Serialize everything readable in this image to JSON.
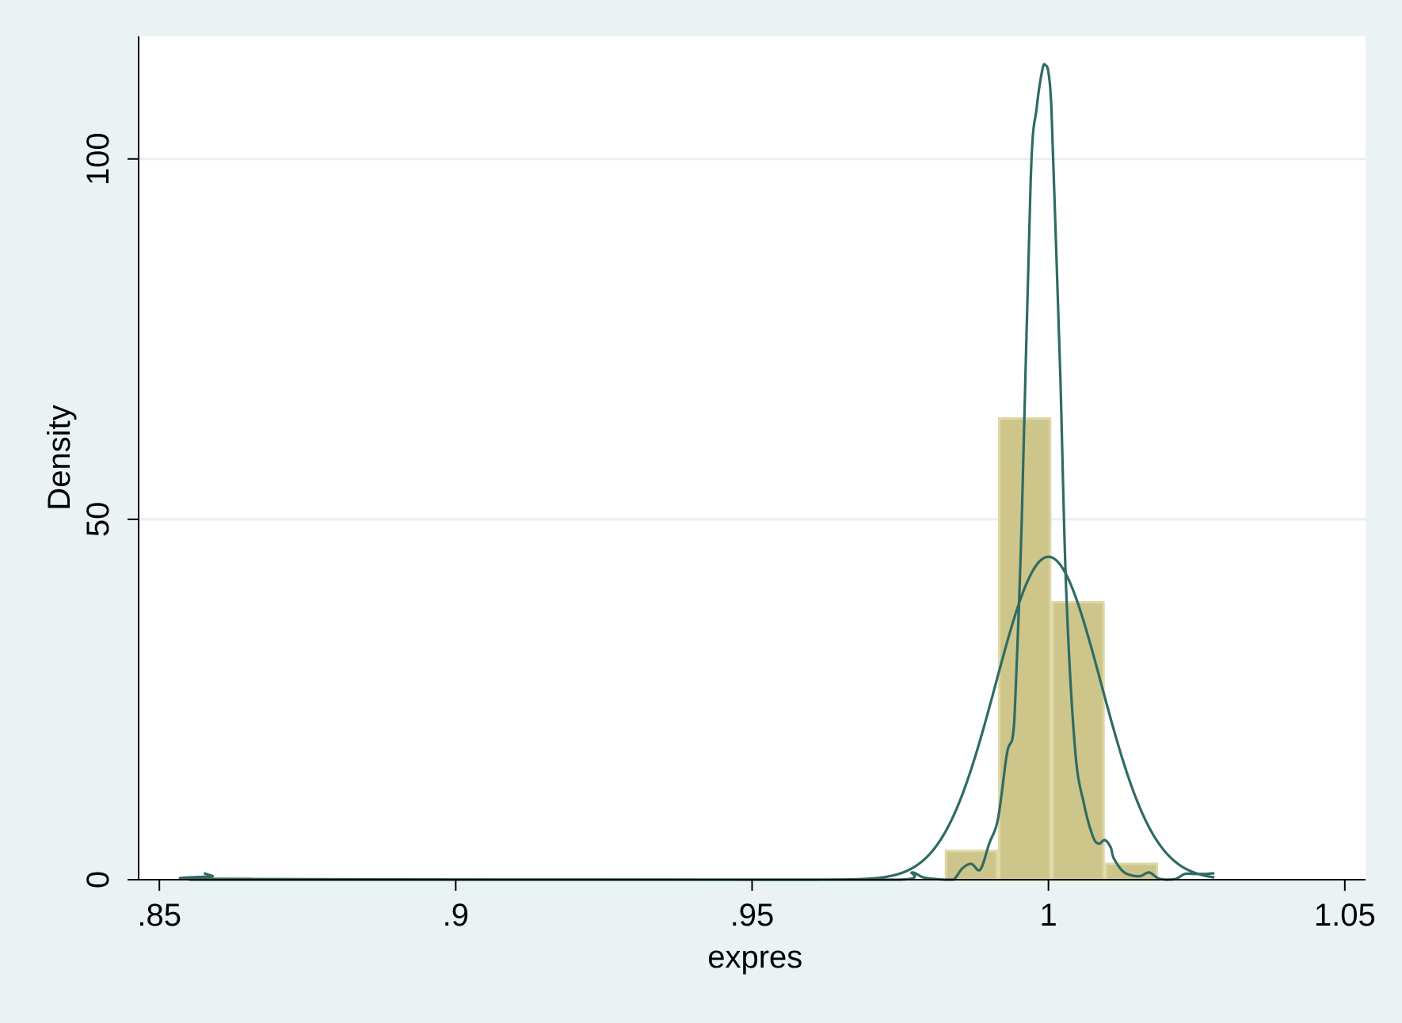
{
  "chart_data": {
    "type": "bar",
    "title": "",
    "xlabel": "expres",
    "ylabel": "Density",
    "xlim": [
      0.8465,
      1.0535
    ],
    "ylim": [
      0,
      117
    ],
    "x_ticks": [
      {
        "value": 0.85,
        "label": ".85"
      },
      {
        "value": 0.9,
        "label": ".9"
      },
      {
        "value": 0.95,
        "label": ".95"
      },
      {
        "value": 1.0,
        "label": "1"
      },
      {
        "value": 1.05,
        "label": "1.05"
      }
    ],
    "y_ticks": [
      {
        "value": 0,
        "label": "0"
      },
      {
        "value": 50,
        "label": "50"
      },
      {
        "value": 100,
        "label": "100"
      }
    ],
    "grid": "horizontal",
    "histogram": {
      "bin_width": 0.009,
      "bins": [
        {
          "x0": 0.8565,
          "x1": 0.8655,
          "density": 0.2
        },
        {
          "x0": 0.9825,
          "x1": 0.9915,
          "density": 4.0
        },
        {
          "x0": 0.9915,
          "x1": 1.0005,
          "density": 64.0
        },
        {
          "x0": 1.0005,
          "x1": 1.0095,
          "density": 38.5
        },
        {
          "x0": 1.0095,
          "x1": 1.0185,
          "density": 2.2
        }
      ]
    },
    "kernel_density": {
      "x": [
        0.8575,
        0.859,
        0.8605,
        0.95,
        0.975,
        0.977,
        0.979,
        0.9825,
        0.984,
        0.9855,
        0.987,
        0.9885,
        0.99,
        0.9915,
        0.993,
        0.994,
        0.9945,
        0.9955,
        0.997,
        0.998,
        0.999,
        0.9995,
        1.0,
        1.0005,
        1.0012,
        1.002,
        1.003,
        1.0045,
        1.006,
        1.0075,
        1.0085,
        1.0095,
        1.0105,
        1.011,
        1.0125,
        1.014,
        1.0155,
        1.017,
        1.0185,
        1.02,
        1.0215,
        1.023,
        1.0245,
        1.0265,
        1.028
      ],
      "y": [
        0.9,
        0.5,
        0.1,
        0.0,
        0.0,
        1.0,
        0.3,
        0.0,
        0.0,
        1.6,
        2.2,
        1.4,
        5.0,
        8.5,
        17.5,
        20.0,
        27.0,
        50.0,
        97.0,
        107.0,
        112.5,
        113.0,
        112.0,
        107.0,
        90.0,
        70.0,
        40.0,
        18.0,
        10.5,
        6.0,
        5.0,
        5.5,
        4.5,
        3.0,
        1.2,
        0.6,
        0.5,
        1.0,
        0.2,
        0.0,
        0.1,
        0.8,
        0.8,
        0.8,
        0.9
      ]
    },
    "normal_density": {
      "mean": 1.0,
      "sd": 0.0089,
      "peak": 44.8,
      "x_from": 0.855,
      "x_to": 1.028
    },
    "colors": {
      "page_background": "#eaf2f3",
      "plot_background": "#ffffff",
      "gridline": "#e8f0ef",
      "bar_fill": "#cdc589",
      "bar_outline": "#ddd8a6",
      "line": "#2f6b63",
      "axis": "#000000"
    }
  }
}
